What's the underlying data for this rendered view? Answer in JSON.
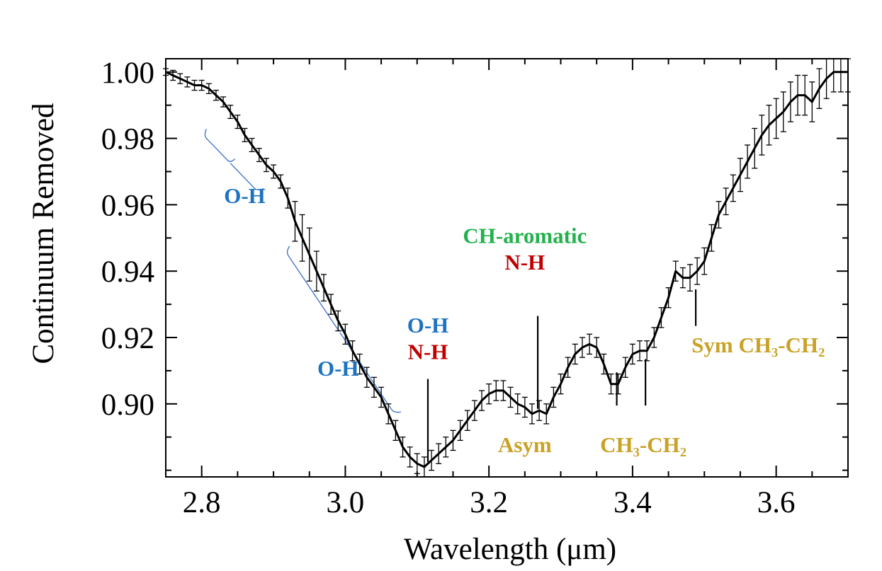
{
  "chart_data": {
    "type": "line",
    "title": "",
    "xlabel": "Wavelength (μm)",
    "ylabel": "Continuum Removed",
    "xlim": [
      2.75,
      3.7
    ],
    "ylim": [
      0.878,
      1.004
    ],
    "xticks": [
      2.8,
      3.0,
      3.2,
      3.4,
      3.6
    ],
    "xtick_labels": [
      "2.8",
      "3.0",
      "3.2",
      "3.4",
      "3.6"
    ],
    "yticks": [
      0.9,
      0.92,
      0.94,
      0.96,
      0.98,
      1.0
    ],
    "ytick_labels": [
      "0.90",
      "0.92",
      "0.94",
      "0.96",
      "0.98",
      "1.00"
    ],
    "series": [
      {
        "name": "spectrum",
        "x": [
          2.75,
          2.76,
          2.77,
          2.78,
          2.79,
          2.8,
          2.81,
          2.82,
          2.83,
          2.84,
          2.85,
          2.86,
          2.87,
          2.88,
          2.89,
          2.9,
          2.91,
          2.92,
          2.93,
          2.94,
          2.95,
          2.96,
          2.97,
          2.98,
          2.99,
          3.0,
          3.01,
          3.02,
          3.03,
          3.04,
          3.05,
          3.06,
          3.07,
          3.08,
          3.09,
          3.1,
          3.11,
          3.12,
          3.13,
          3.14,
          3.15,
          3.16,
          3.17,
          3.18,
          3.19,
          3.2,
          3.21,
          3.22,
          3.23,
          3.24,
          3.25,
          3.26,
          3.27,
          3.28,
          3.29,
          3.3,
          3.31,
          3.32,
          3.33,
          3.34,
          3.35,
          3.36,
          3.37,
          3.38,
          3.39,
          3.4,
          3.41,
          3.42,
          3.43,
          3.44,
          3.45,
          3.46,
          3.47,
          3.48,
          3.49,
          3.5,
          3.51,
          3.52,
          3.53,
          3.54,
          3.55,
          3.56,
          3.57,
          3.58,
          3.59,
          3.6,
          3.61,
          3.62,
          3.63,
          3.64,
          3.65,
          3.66,
          3.67,
          3.68,
          3.69,
          3.7
        ],
        "y": [
          1.0,
          0.999,
          0.998,
          0.997,
          0.996,
          0.996,
          0.995,
          0.993,
          0.991,
          0.988,
          0.985,
          0.981,
          0.978,
          0.975,
          0.972,
          0.97,
          0.967,
          0.962,
          0.955,
          0.95,
          0.945,
          0.94,
          0.935,
          0.93,
          0.925,
          0.921,
          0.916,
          0.912,
          0.908,
          0.905,
          0.902,
          0.897,
          0.892,
          0.887,
          0.884,
          0.882,
          0.881,
          0.883,
          0.885,
          0.887,
          0.889,
          0.892,
          0.895,
          0.898,
          0.901,
          0.903,
          0.904,
          0.904,
          0.902,
          0.9,
          0.899,
          0.897,
          0.898,
          0.897,
          0.902,
          0.906,
          0.911,
          0.915,
          0.917,
          0.918,
          0.917,
          0.912,
          0.906,
          0.906,
          0.911,
          0.915,
          0.916,
          0.916,
          0.92,
          0.926,
          0.932,
          0.94,
          0.938,
          0.938,
          0.94,
          0.943,
          0.95,
          0.957,
          0.961,
          0.965,
          0.969,
          0.973,
          0.977,
          0.981,
          0.984,
          0.986,
          0.988,
          0.991,
          0.993,
          0.993,
          0.991,
          0.995,
          0.998,
          1.0,
          1.0,
          1.0
        ],
        "err": [
          0.001,
          0.0015,
          0.0015,
          0.0015,
          0.0015,
          0.0015,
          0.0015,
          0.0015,
          0.0015,
          0.002,
          0.002,
          0.002,
          0.002,
          0.002,
          0.002,
          0.002,
          0.002,
          0.003,
          0.006,
          0.007,
          0.008,
          0.006,
          0.004,
          0.003,
          0.003,
          0.003,
          0.003,
          0.003,
          0.003,
          0.003,
          0.003,
          0.003,
          0.003,
          0.003,
          0.003,
          0.003,
          0.003,
          0.003,
          0.003,
          0.003,
          0.003,
          0.003,
          0.003,
          0.003,
          0.003,
          0.003,
          0.003,
          0.003,
          0.003,
          0.003,
          0.003,
          0.003,
          0.003,
          0.003,
          0.003,
          0.003,
          0.003,
          0.003,
          0.003,
          0.003,
          0.003,
          0.003,
          0.003,
          0.003,
          0.003,
          0.003,
          0.003,
          0.003,
          0.003,
          0.003,
          0.003,
          0.003,
          0.003,
          0.004,
          0.004,
          0.004,
          0.004,
          0.004,
          0.004,
          0.004,
          0.005,
          0.005,
          0.006,
          0.006,
          0.006,
          0.006,
          0.006,
          0.006,
          0.006,
          0.006,
          0.006,
          0.006,
          0.006,
          0.006,
          0.006,
          0.006
        ]
      }
    ],
    "annotations": [
      {
        "text": "O-H",
        "color": "#1e73c0",
        "x": 2.86,
        "y": 0.9605,
        "anchor": "middle"
      },
      {
        "text": "O-H",
        "color": "#1e73c0",
        "x": 2.99,
        "y": 0.9085,
        "anchor": "middle"
      },
      {
        "text": "O-H",
        "color": "#1e73c0",
        "x": 3.115,
        "y": 0.9215,
        "anchor": "middle"
      },
      {
        "text": "N-H",
        "color": "#c00000",
        "x": 3.115,
        "y": 0.9135,
        "anchor": "middle"
      },
      {
        "text": "CH-aromatic",
        "color": "#22b14c",
        "x": 3.25,
        "y": 0.9485,
        "anchor": "middle"
      },
      {
        "text": "N-H",
        "color": "#c00000",
        "x": 3.25,
        "y": 0.9405,
        "anchor": "middle"
      },
      {
        "text": "Asym",
        "color": "#c9a227",
        "x": 3.25,
        "y": 0.8855,
        "anchor": "middle"
      },
      {
        "text": "CH₃-CH₂",
        "color": "#c9a227",
        "x": 3.415,
        "y": 0.8855,
        "anchor": "middle"
      },
      {
        "text": "Sym CH₃-CH₂",
        "color": "#c9a227",
        "x": 3.575,
        "y": 0.9155,
        "anchor": "middle"
      }
    ],
    "markers": [
      {
        "x": 3.115,
        "y0": 0.8825,
        "y1": 0.9075
      },
      {
        "x": 3.268,
        "y0": 0.8985,
        "y1": 0.9265
      },
      {
        "x": 3.378,
        "y0": 0.8995,
        "y1": 0.9095
      },
      {
        "x": 3.418,
        "y0": 0.8995,
        "y1": 0.9135
      },
      {
        "x": 3.488,
        "y0": 0.9235,
        "y1": 0.9345
      }
    ],
    "brackets": [
      {
        "color": "#4477cc",
        "x0": 2.8,
        "y0": 0.9815,
        "x1": 2.88,
        "y1": 0.9635
      },
      {
        "color": "#4477cc",
        "x0": 2.915,
        "y0": 0.9465,
        "x1": 3.07,
        "y1": 0.8965
      }
    ]
  }
}
